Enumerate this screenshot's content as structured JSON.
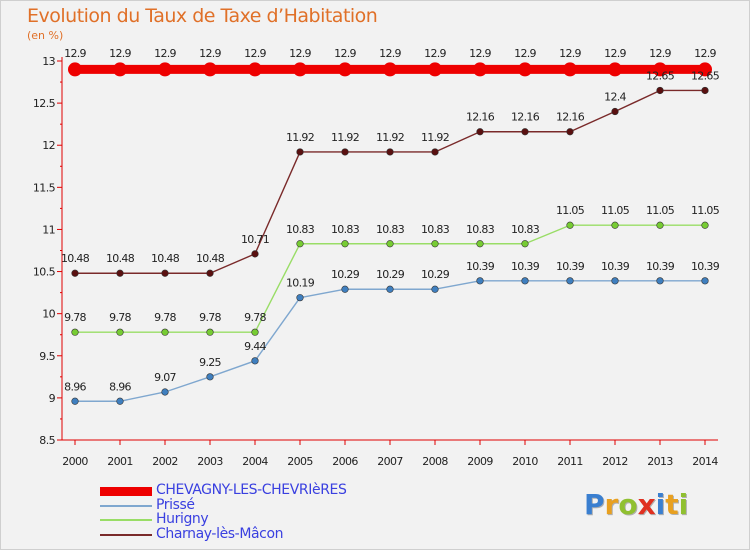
{
  "header": {
    "title": "Evolution du Taux de Taxe d’Habitation",
    "subtitle": "(en %)"
  },
  "chart_data": {
    "type": "line",
    "title": "Evolution du Taux de Taxe d’Habitation",
    "ylabel": "(en %)",
    "xlabel": "",
    "x": [
      "2000",
      "2001",
      "2002",
      "2003",
      "2004",
      "2005",
      "2006",
      "2007",
      "2008",
      "2009",
      "2010",
      "2011",
      "2012",
      "2013",
      "2014"
    ],
    "ylim": [
      8.5,
      13
    ],
    "yticks": [
      "8.5",
      "9",
      "9.5",
      "10",
      "10.5",
      "11",
      "11.5",
      "12",
      "12.5",
      "13"
    ],
    "grid": false,
    "legend_position": "bottom-left",
    "series": [
      {
        "name": "CHEVAGNY-LES-CHEVRIèRES",
        "color": "#ee0000",
        "dot": "#ee0000",
        "values": [
          12.9,
          12.9,
          12.9,
          12.9,
          12.9,
          12.9,
          12.9,
          12.9,
          12.9,
          12.9,
          12.9,
          12.9,
          12.9,
          12.9,
          12.9
        ],
        "labels": [
          "12.9",
          "12.9",
          "12.9",
          "12.9",
          "12.9",
          "12.9",
          "12.9",
          "12.9",
          "12.9",
          "12.9",
          "12.9",
          "12.9",
          "12.9",
          "12.9",
          "12.9"
        ]
      },
      {
        "name": "Prissé",
        "color": "#7fa7cf",
        "dot": "#3f7fbf",
        "values": [
          8.96,
          8.96,
          9.07,
          9.25,
          9.44,
          10.19,
          10.29,
          10.29,
          10.29,
          10.39,
          10.39,
          10.39,
          10.39,
          10.39,
          10.39
        ],
        "labels": [
          "8.96",
          "8.96",
          "9.07",
          "9.25",
          "9.44",
          "10.19",
          "10.29",
          "10.29",
          "10.29",
          "10.39",
          "10.39",
          "10.39",
          "10.39",
          "10.39",
          "10.39"
        ]
      },
      {
        "name": "Hurigny",
        "color": "#99dd66",
        "dot": "#77cc33",
        "values": [
          9.78,
          9.78,
          9.78,
          9.78,
          9.78,
          10.83,
          10.83,
          10.83,
          10.83,
          10.83,
          10.83,
          11.05,
          11.05,
          11.05,
          11.05
        ],
        "labels": [
          "9.78",
          "9.78",
          "9.78",
          "9.78",
          "9.78",
          "10.83",
          "10.83",
          "10.83",
          "10.83",
          "10.83",
          "10.83",
          "11.05",
          "11.05",
          "11.05",
          "11.05"
        ]
      },
      {
        "name": "Charnay-lès-Mâcon",
        "color": "#7a2a2a",
        "dot": "#5a1010",
        "values": [
          10.48,
          10.48,
          10.48,
          10.48,
          10.71,
          11.92,
          11.92,
          11.92,
          11.92,
          12.16,
          12.16,
          12.16,
          12.4,
          12.65,
          12.65
        ],
        "labels": [
          "10.48",
          "10.48",
          "10.48",
          "10.48",
          "10.71",
          "11.92",
          "11.92",
          "11.92",
          "11.92",
          "12.16",
          "12.16",
          "12.16",
          "12.4",
          "12.65",
          "12.65"
        ]
      }
    ]
  },
  "logo": {
    "text": "Proxiti",
    "letters": [
      {
        "ch": "P",
        "color": "#3a7fd0"
      },
      {
        "ch": "r",
        "color": "#e8a020"
      },
      {
        "ch": "o",
        "color": "#90c030"
      },
      {
        "ch": "x",
        "color": "#e03020"
      },
      {
        "ch": "i",
        "color": "#3a7fd0"
      },
      {
        "ch": "t",
        "color": "#e8a020"
      },
      {
        "ch": "i",
        "color": "#90c030"
      }
    ]
  }
}
